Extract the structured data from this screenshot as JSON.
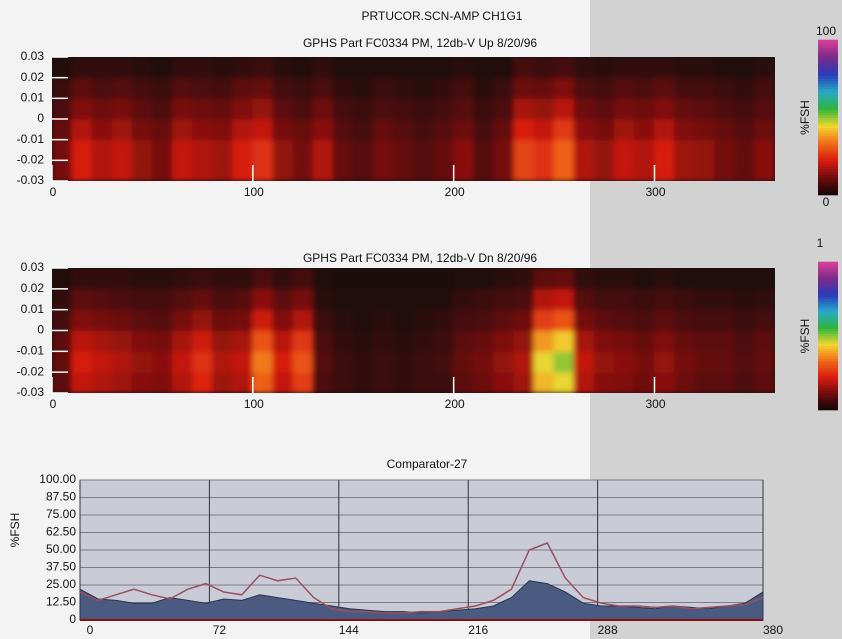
{
  "header": {
    "title": "PRTUCOR.SCN-AMP CH1G1"
  },
  "chart_data": [
    {
      "type": "heatmap",
      "title": "GPHS Part FC0334 PM, 12db-V Up 8/20/96",
      "xlim": [
        0,
        360
      ],
      "ylim": [
        -0.03,
        0.03
      ],
      "xticks": [
        0,
        100,
        200,
        300
      ],
      "yticks": [
        0.03,
        0.02,
        0.01,
        0,
        -0.01,
        -0.02,
        -0.03
      ],
      "clim": [
        0,
        100
      ],
      "colorbar_title": "%FSH",
      "colorscale": [
        "#120606",
        "#6e0c0c",
        "#d81c10",
        "#f06a18",
        "#f2d830",
        "#2fb43c",
        "#28a8c8",
        "#2a3cb8",
        "#7a2a8a",
        "#d8409a"
      ],
      "z": [
        [
          12,
          22,
          18,
          20,
          15,
          12,
          20,
          18,
          16,
          22,
          25,
          15,
          12,
          18,
          10,
          8,
          12,
          10,
          8,
          10,
          14,
          8,
          12,
          28,
          25,
          32,
          18,
          15,
          20,
          18,
          22,
          16,
          15,
          12,
          10,
          14
        ],
        [
          12,
          22,
          18,
          20,
          15,
          12,
          20,
          18,
          16,
          22,
          25,
          15,
          12,
          18,
          10,
          8,
          12,
          10,
          8,
          10,
          14,
          8,
          12,
          28,
          25,
          32,
          18,
          15,
          20,
          18,
          22,
          16,
          15,
          12,
          10,
          14
        ],
        [
          10,
          18,
          14,
          16,
          12,
          10,
          16,
          14,
          13,
          18,
          20,
          12,
          10,
          14,
          8,
          6,
          10,
          8,
          6,
          8,
          11,
          6,
          10,
          22,
          20,
          26,
          14,
          12,
          16,
          14,
          18,
          13,
          12,
          10,
          8,
          11
        ],
        [
          7,
          13,
          11,
          12,
          9,
          7,
          12,
          11,
          10,
          13,
          15,
          9,
          7,
          11,
          6,
          5,
          7,
          6,
          5,
          6,
          8,
          5,
          7,
          17,
          15,
          19,
          11,
          9,
          12,
          11,
          13,
          10,
          9,
          7,
          6,
          8
        ],
        [
          5,
          9,
          7,
          8,
          6,
          5,
          8,
          7,
          6,
          9,
          10,
          6,
          5,
          7,
          4,
          3,
          5,
          4,
          3,
          4,
          6,
          3,
          5,
          11,
          10,
          13,
          7,
          6,
          8,
          7,
          9,
          6,
          6,
          5,
          4,
          6
        ],
        [
          2,
          4,
          4,
          4,
          3,
          2,
          4,
          4,
          3,
          4,
          5,
          3,
          2,
          4,
          2,
          2,
          2,
          2,
          2,
          2,
          3,
          2,
          2,
          6,
          5,
          6,
          4,
          3,
          4,
          4,
          4,
          3,
          3,
          2,
          2,
          3
        ]
      ]
    },
    {
      "type": "heatmap",
      "title": "GPHS Part FC0334 PM, 12db-V Dn 8/20/96",
      "xlim": [
        0,
        360
      ],
      "ylim": [
        -0.03,
        0.03
      ],
      "xticks": [
        0,
        100,
        200,
        300
      ],
      "yticks": [
        0.03,
        0.02,
        0.01,
        0,
        -0.01,
        -0.02,
        -0.03
      ],
      "clim": [
        0,
        100
      ],
      "colorbar_top_label": "1",
      "colorbar_title": "%FSH",
      "colorscale": [
        "#120606",
        "#6e0c0c",
        "#d81c10",
        "#f06a18",
        "#f2d830",
        "#2fb43c",
        "#28a8c8",
        "#2a3cb8",
        "#7a2a8a",
        "#d8409a"
      ],
      "z": [
        [
          9,
          20,
          18,
          16,
          14,
          13,
          18,
          23,
          16,
          18,
          32,
          20,
          27,
          7,
          5,
          4,
          5,
          4,
          5,
          5,
          9,
          11,
          14,
          16,
          41,
          45,
          18,
          14,
          13,
          11,
          14,
          11,
          9,
          9,
          7,
          9
        ],
        [
          10,
          22,
          20,
          18,
          15,
          14,
          20,
          25,
          18,
          20,
          35,
          22,
          30,
          8,
          5,
          4,
          5,
          4,
          5,
          6,
          10,
          12,
          15,
          18,
          45,
          50,
          20,
          15,
          14,
          12,
          15,
          12,
          10,
          10,
          8,
          10
        ],
        [
          9,
          19,
          17,
          15,
          13,
          12,
          17,
          21,
          15,
          17,
          30,
          19,
          26,
          7,
          4,
          3,
          4,
          3,
          4,
          5,
          9,
          10,
          13,
          15,
          38,
          43,
          17,
          13,
          12,
          10,
          13,
          10,
          9,
          9,
          7,
          9
        ],
        [
          6,
          13,
          12,
          11,
          9,
          8,
          12,
          15,
          11,
          12,
          21,
          13,
          18,
          5,
          3,
          2,
          3,
          2,
          3,
          4,
          6,
          7,
          9,
          11,
          27,
          30,
          12,
          9,
          8,
          7,
          9,
          7,
          6,
          6,
          5,
          6
        ],
        [
          4,
          9,
          8,
          7,
          6,
          6,
          8,
          10,
          7,
          8,
          14,
          9,
          12,
          3,
          2,
          2,
          2,
          2,
          2,
          2,
          4,
          5,
          6,
          7,
          18,
          20,
          8,
          6,
          6,
          5,
          6,
          5,
          4,
          4,
          3,
          4
        ],
        [
          2,
          4,
          4,
          4,
          3,
          3,
          4,
          5,
          4,
          4,
          7,
          4,
          6,
          2,
          1,
          1,
          1,
          1,
          1,
          1,
          2,
          2,
          3,
          4,
          9,
          10,
          4,
          3,
          3,
          2,
          3,
          2,
          2,
          2,
          2,
          2
        ]
      ]
    },
    {
      "type": "line",
      "title": "Comparator-27",
      "y_label": "%FSH",
      "xlim": [
        0,
        380
      ],
      "ylim": [
        0,
        100
      ],
      "xticks": [
        0,
        72,
        144,
        216,
        288,
        380
      ],
      "yticks": [
        {
          "value": 100,
          "label": "100.00"
        },
        {
          "value": 87.5,
          "label": "87.50"
        },
        {
          "value": 75,
          "label": "75.00"
        },
        {
          "value": 62.5,
          "label": "62.50"
        },
        {
          "value": 50,
          "label": "50.00"
        },
        {
          "value": 37.5,
          "label": "37.50"
        },
        {
          "value": 25,
          "label": "25.00"
        },
        {
          "value": 12.5,
          "label": "12.50"
        },
        {
          "value": 0,
          "label": "0"
        }
      ],
      "grid": true,
      "x": [
        0,
        10,
        20,
        30,
        40,
        50,
        60,
        70,
        80,
        90,
        100,
        110,
        120,
        130,
        140,
        150,
        160,
        170,
        180,
        190,
        200,
        210,
        220,
        230,
        240,
        250,
        260,
        270,
        280,
        290,
        300,
        310,
        320,
        330,
        340,
        350,
        360,
        370,
        380
      ],
      "series": [
        {
          "color": "#4a5a80",
          "fill": true,
          "values": [
            22,
            15,
            14,
            12,
            12,
            16,
            14,
            12,
            15,
            14,
            18,
            16,
            14,
            12,
            10,
            8,
            7,
            6,
            6,
            5,
            6,
            7,
            8,
            10,
            16,
            28,
            26,
            20,
            12,
            10,
            10,
            9,
            8,
            10,
            9,
            8,
            10,
            12,
            20
          ]
        },
        {
          "color": "#9a5060",
          "fill": false,
          "values": [
            20,
            14,
            18,
            22,
            18,
            15,
            22,
            26,
            20,
            18,
            32,
            28,
            30,
            16,
            8,
            6,
            6,
            5,
            5,
            6,
            6,
            8,
            10,
            14,
            22,
            50,
            55,
            30,
            16,
            12,
            10,
            10,
            9,
            10,
            8,
            9,
            10,
            11,
            16
          ]
        }
      ]
    }
  ]
}
